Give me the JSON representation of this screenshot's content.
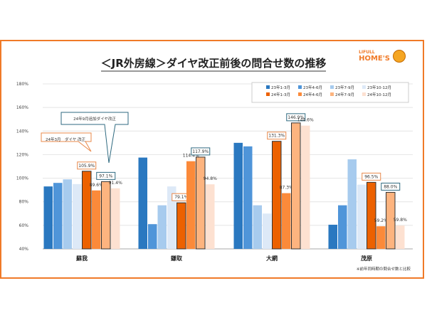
{
  "brand": {
    "line1": "LIFULL",
    "line2": "HOME'S"
  },
  "chart_data": {
    "type": "bar",
    "title": "＜JR外房線＞ダイヤ改正前後の問合せ数の推移",
    "categories": [
      "蘇我",
      "鎌取",
      "大網",
      "茂原"
    ],
    "ylim": [
      40,
      180
    ],
    "yticks": [
      "40%",
      "60%",
      "80%",
      "100%",
      "120%",
      "140%",
      "160%",
      "180%"
    ],
    "ytick_values": [
      40,
      60,
      80,
      100,
      120,
      140,
      160,
      180
    ],
    "grid": true,
    "legend_placement": "top-right",
    "series": [
      {
        "name": "23年1-3月",
        "color": "#2a78c0",
        "values": [
          93,
          117.5,
          130,
          60.5
        ]
      },
      {
        "name": "23年4-6月",
        "color": "#4f95d9",
        "values": [
          96,
          61,
          127,
          77
        ]
      },
      {
        "name": "23年7-9月",
        "color": "#a7cbee",
        "values": [
          99,
          77,
          77,
          116
        ]
      },
      {
        "name": "23年10-12月",
        "color": "#dde9f7",
        "values": [
          95,
          93,
          70,
          94.5
        ]
      },
      {
        "name": "24年1-3月",
        "color": "#ec6100",
        "values": [
          105.9,
          79.1,
          131.3,
          96.5
        ],
        "labels": [
          "105.9%",
          "79.1%",
          "131.3%",
          "96.5%"
        ]
      },
      {
        "name": "24年4-6月",
        "color": "#fb8a3a",
        "values": [
          89.6,
          114.4,
          87.3,
          59.2
        ],
        "labels": [
          "89.6%",
          "114.4%",
          "87.3%",
          "59.2%"
        ]
      },
      {
        "name": "24年7-9月",
        "color": "#fdb47f",
        "values": [
          97.1,
          117.9,
          146.9,
          88.0
        ],
        "labels": [
          "97.1%",
          "117.9%",
          "146.9%",
          "88.0%"
        ]
      },
      {
        "name": "24年10-12月",
        "color": "#fde1d1",
        "values": [
          91.4,
          94.8,
          144.6,
          59.8
        ],
        "labels": [
          "91.4%",
          "94.8%",
          "144.6%",
          "59.8%"
        ]
      }
    ],
    "annotations": [
      {
        "text": "24年3月　ダイヤ 改正",
        "color": "#e8884a"
      },
      {
        "text": "24年9月追加ダイヤ改正",
        "color": "#2f6a80"
      }
    ],
    "footnote": "※前年同時期の問合せ数と比較"
  }
}
